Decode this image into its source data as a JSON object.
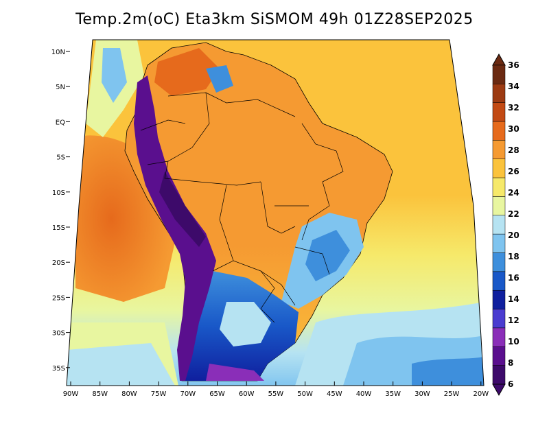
{
  "title": "Temp.2m(oC) Eta3km SiSMOM 49h 01Z28SEP2025",
  "lat_ticks": [
    "10N",
    "5N",
    "EQ",
    "5S",
    "10S",
    "15S",
    "20S",
    "25S",
    "30S",
    "35S"
  ],
  "lon_ticks": [
    "90W",
    "85W",
    "80W",
    "75W",
    "70W",
    "65W",
    "60W",
    "55W",
    "50W",
    "45W",
    "40W",
    "35W",
    "30W",
    "25W",
    "20W"
  ],
  "colorbar": {
    "labels": [
      "36",
      "34",
      "32",
      "30",
      "28",
      "26",
      "24",
      "22",
      "20",
      "18",
      "16",
      "14",
      "12",
      "10",
      "8",
      "6"
    ],
    "colors": [
      "#6b2a12",
      "#9c3a12",
      "#c24a14",
      "#e66a1c",
      "#f59a32",
      "#fbc33c",
      "#f6e96a",
      "#e8f6a0",
      "#b6e3f2",
      "#7fc4ef",
      "#3e8fdc",
      "#1958c8",
      "#0f1f9e",
      "#4a3cd0",
      "#8a2eb8",
      "#5a0f8e",
      "#3d0a6a"
    ]
  },
  "field_colors": {
    "ocean_north": "#fbc33c",
    "ocean_warm": "#f59a32",
    "ocean_south": "#7fc4ef",
    "amazon": "#f59a32",
    "andes": "#5a0f8e",
    "southeast": "#3e8fdc",
    "patagonia": "#1958c8",
    "caribbean": "#b6e3f2"
  }
}
